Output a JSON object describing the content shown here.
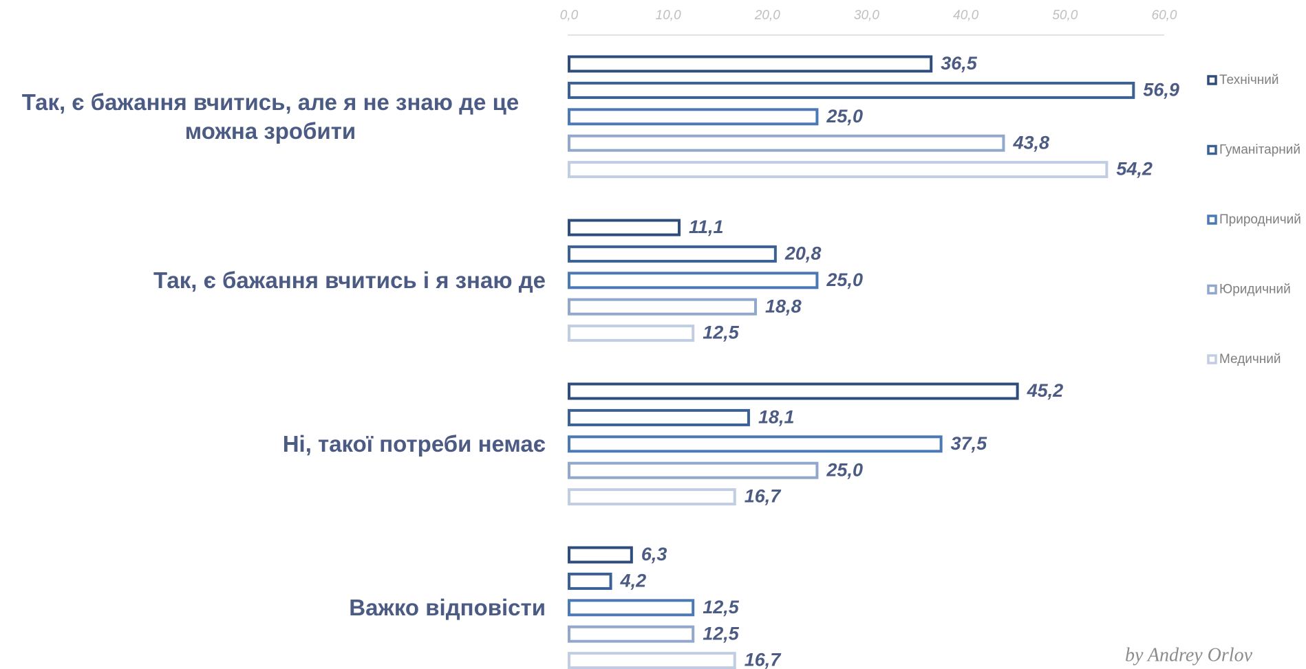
{
  "chart_data": {
    "type": "bar",
    "orientation": "horizontal",
    "categories": [
      "Так, є бажання вчитись, але я не знаю де це можна зробити",
      "Так, є бажання вчитись і я знаю де",
      "Ні, такої потреби немає",
      "Важко відповісти"
    ],
    "series": [
      {
        "name": "Технічний",
        "color": "#2e4d7c",
        "values": [
          36.5,
          11.1,
          45.2,
          6.3
        ],
        "value_labels": [
          "36,5",
          "11,1",
          "45,2",
          "6,3"
        ]
      },
      {
        "name": "Гуманітарний",
        "color": "#3b6096",
        "values": [
          56.9,
          20.8,
          18.1,
          4.2
        ],
        "value_labels": [
          "56,9",
          "20,8",
          "18,1",
          "4,2"
        ]
      },
      {
        "name": "Природничий",
        "color": "#4a79b6",
        "values": [
          25.0,
          25.0,
          37.5,
          12.5
        ],
        "value_labels": [
          "25,0",
          "25,0",
          "37,5",
          "12,5"
        ]
      },
      {
        "name": "Юридичний",
        "color": "#91a7cb",
        "values": [
          43.8,
          18.8,
          25.0,
          12.5
        ],
        "value_labels": [
          "43,8",
          "18,8",
          "25,0",
          "12,5"
        ]
      },
      {
        "name": "Медичний",
        "color": "#c1cde3",
        "values": [
          54.2,
          12.5,
          16.7,
          16.7
        ],
        "value_labels": [
          "54,2",
          "12,5",
          "16,7",
          "16,7"
        ]
      }
    ],
    "xlim": [
      0,
      60
    ],
    "xticks": [
      {
        "value": 0,
        "label": "0,0"
      },
      {
        "value": 10,
        "label": "10,0"
      },
      {
        "value": 20,
        "label": "20,0"
      },
      {
        "value": 30,
        "label": "30,0"
      },
      {
        "value": 40,
        "label": "40,0"
      },
      {
        "value": 50,
        "label": "50,0"
      },
      {
        "value": 60,
        "label": "60,0"
      }
    ],
    "legend": "right",
    "watermark": "by Andrey Orlov"
  }
}
